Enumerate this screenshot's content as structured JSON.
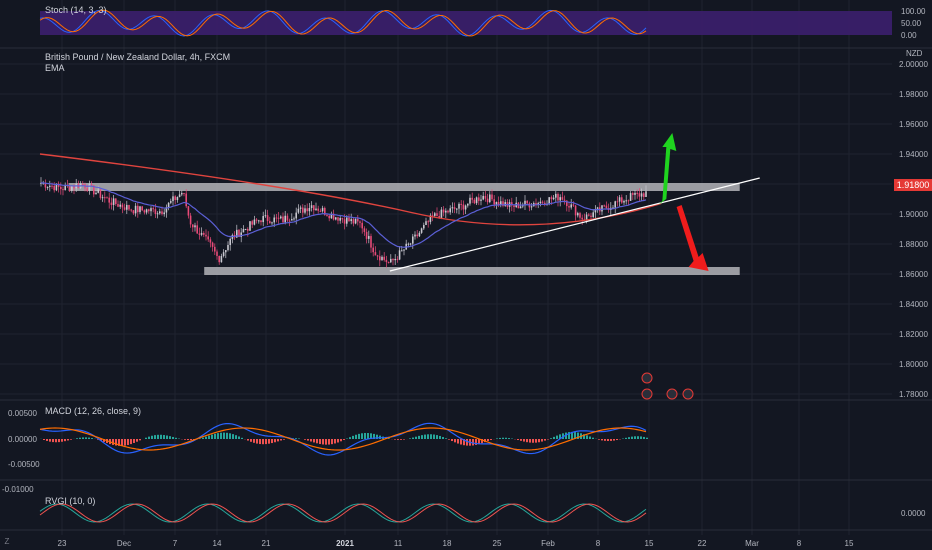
{
  "stoch": {
    "label": "Stoch (14, 3, 3)",
    "ticks": [
      "100.00",
      "50.00",
      "0.00"
    ]
  },
  "main": {
    "title": "British Pound / New Zealand Dollar, 4h, FXCM",
    "ema_label": "EMA",
    "currency": "NZD",
    "last_price": "1.91800"
  },
  "macd": {
    "label": "MACD (12, 26, close, 9)",
    "ticks": [
      "0.00500",
      "0.00000",
      "-0.00500",
      "-0.01000"
    ]
  },
  "rvgi": {
    "label": "RVGI (10, 0)",
    "ticks": [
      "0.0000"
    ]
  },
  "corner_label": "Z",
  "colors": {
    "bg": "#131722",
    "grid": "#1f2330",
    "up": "#c8c8d0",
    "down": "#e84a78",
    "ema": "#e0443e",
    "fast": "#5b5fd6",
    "support": "#b4b4b8",
    "trend": "#ffffff",
    "arrow_up": "#1fd31f",
    "arrow_down": "#f01c1c",
    "macd_line": "#2962ff",
    "signal_line": "#ff6d00",
    "hist_up": "#26a69a",
    "hist_down": "#ef5350",
    "stoch_band": "#3c1f6e",
    "rvgi_line": "#26a69a",
    "rvgi_signal": "#ef5350"
  },
  "chart_data": {
    "type": "candlestick",
    "symbol": "British Pound / New Zealand Dollar",
    "timeframe": "4h",
    "source": "FXCM",
    "y_axis": {
      "currency": "NZD",
      "ticks": [
        "2.00000",
        "1.98000",
        "1.96000",
        "1.94000",
        "1.92000",
        "1.90000",
        "1.88000",
        "1.86000",
        "1.84000",
        "1.82000",
        "1.80000",
        "1.78000"
      ],
      "range": [
        1.765,
        2.01
      ]
    },
    "x_axis": {
      "ticks": [
        "23",
        "Dec",
        "7",
        "14",
        "21",
        "2021",
        "11",
        "18",
        "25",
        "Feb",
        "8",
        "15",
        "22",
        "Mar",
        "8",
        "15"
      ]
    },
    "last_price": 1.918,
    "close_path": [
      {
        "date": "Nov 20",
        "close": 1.921
      },
      {
        "date": "Nov 23",
        "close": 1.917
      },
      {
        "date": "Nov 26",
        "close": 1.92
      },
      {
        "date": "Nov 30",
        "close": 1.908
      },
      {
        "date": "Dec 3",
        "close": 1.903
      },
      {
        "date": "Dec 7",
        "close": 1.902
      },
      {
        "date": "Dec 10",
        "close": 1.915
      },
      {
        "date": "Dec 11",
        "close": 1.895
      },
      {
        "date": "Dec 14",
        "close": 1.878
      },
      {
        "date": "Dec 15",
        "close": 1.87
      },
      {
        "date": "Dec 17",
        "close": 1.885
      },
      {
        "date": "Dec 21",
        "close": 1.897
      },
      {
        "date": "Dec 24",
        "close": 1.896
      },
      {
        "date": "Dec 28",
        "close": 1.906
      },
      {
        "date": "Dec 31",
        "close": 1.899
      },
      {
        "date": "Jan 4",
        "close": 1.893
      },
      {
        "date": "Jan 6",
        "close": 1.874
      },
      {
        "date": "Jan 8",
        "close": 1.867
      },
      {
        "date": "Jan 11",
        "close": 1.881
      },
      {
        "date": "Jan 14",
        "close": 1.898
      },
      {
        "date": "Jan 18",
        "close": 1.905
      },
      {
        "date": "Jan 21",
        "close": 1.912
      },
      {
        "date": "Jan 25",
        "close": 1.905
      },
      {
        "date": "Jan 29",
        "close": 1.908
      },
      {
        "date": "Feb 1",
        "close": 1.912
      },
      {
        "date": "Feb 4",
        "close": 1.897
      },
      {
        "date": "Feb 8",
        "close": 1.906
      },
      {
        "date": "Feb 11",
        "close": 1.912
      },
      {
        "date": "Feb 15",
        "close": 1.916
      }
    ],
    "ema": {
      "start_date": "Nov 20",
      "start": 1.94,
      "mid_date": "Jan 11",
      "mid": 1.901,
      "end_date": "Feb 15",
      "end": 1.907
    },
    "zones": [
      {
        "name": "resistance",
        "price": 1.918,
        "from": "Nov 24",
        "to": "Feb 26"
      },
      {
        "name": "support",
        "price": 1.862,
        "from": "Dec 13",
        "to": "Feb 26"
      }
    ],
    "trendline": {
      "from": {
        "date": "Jan 8",
        "price": 1.862
      },
      "to": {
        "date": "Feb 26",
        "price": 1.922
      }
    },
    "arrows": [
      {
        "direction": "up",
        "from": 1.906,
        "to": 1.954,
        "date": "Feb 16"
      },
      {
        "direction": "down",
        "from": 1.906,
        "to": 1.862,
        "date": "Feb 18"
      }
    ]
  }
}
